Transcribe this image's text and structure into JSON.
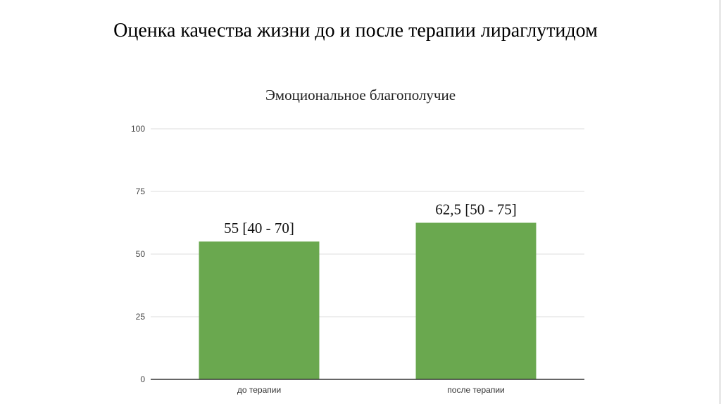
{
  "slide": {
    "title": "Оценка качества жизни до и после терапии лираглутидом"
  },
  "chart_data": {
    "type": "bar",
    "title": "Эмоциональное благополучие",
    "xlabel": "",
    "ylabel": "",
    "categories": [
      "до терапии",
      "после терапии"
    ],
    "values": [
      55,
      62.5
    ],
    "data_labels": [
      "55 [40 - 70]",
      "62,5 [50 - 75]"
    ],
    "yticks": [
      "0",
      "25",
      "50",
      "75",
      "100"
    ],
    "ylim": [
      0,
      100
    ],
    "grid": true,
    "legend": "none",
    "bar_color": "#6aa84f",
    "grid_color": "#dddddd",
    "axis_color": "#333333"
  }
}
